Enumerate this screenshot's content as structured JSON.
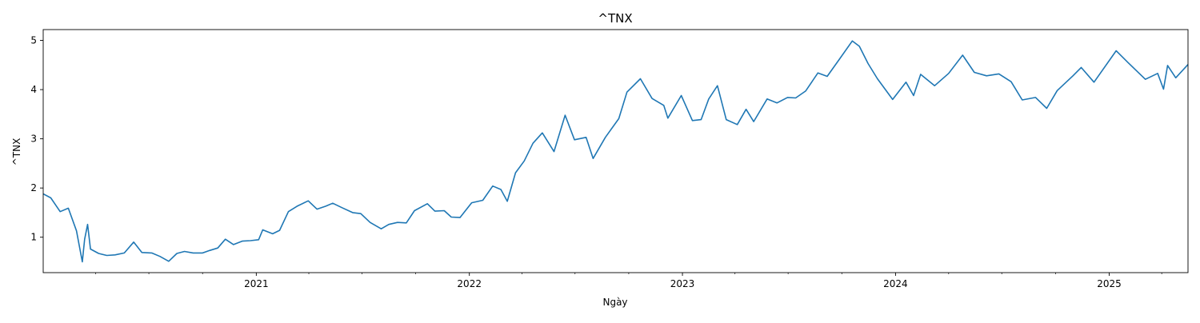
{
  "chart_data": {
    "type": "line",
    "title": "^TNX",
    "xlabel": "Ngày",
    "ylabel": "^TNX",
    "xlim": [
      "2020-01-02",
      "2025-05-16"
    ],
    "ylim": [
      0.28,
      5.22
    ],
    "yticks": [
      1,
      2,
      3,
      4,
      5
    ],
    "xticks": [
      {
        "date": "2021-01-01",
        "label": "2021"
      },
      {
        "date": "2022-01-01",
        "label": "2022"
      },
      {
        "date": "2023-01-01",
        "label": "2023"
      },
      {
        "date": "2024-01-01",
        "label": "2024"
      },
      {
        "date": "2025-01-01",
        "label": "2025"
      }
    ],
    "minor_xticks": [
      "2020-04-01",
      "2020-07-01",
      "2020-10-01",
      "2021-04-01",
      "2021-07-01",
      "2021-10-01",
      "2022-04-01",
      "2022-07-01",
      "2022-10-01",
      "2023-04-01",
      "2023-07-01",
      "2023-10-01",
      "2024-04-01",
      "2024-07-01",
      "2024-10-01",
      "2025-04-01"
    ],
    "grid": false,
    "legend": "none",
    "series": [
      {
        "color": "#1f77b4",
        "points": [
          [
            "2020-01-02",
            1.88
          ],
          [
            "2020-01-15",
            1.8
          ],
          [
            "2020-01-31",
            1.52
          ],
          [
            "2020-02-14",
            1.59
          ],
          [
            "2020-02-28",
            1.13
          ],
          [
            "2020-03-09",
            0.5
          ],
          [
            "2020-03-13",
            0.96
          ],
          [
            "2020-03-18",
            1.26
          ],
          [
            "2020-03-23",
            0.76
          ],
          [
            "2020-04-06",
            0.67
          ],
          [
            "2020-04-20",
            0.63
          ],
          [
            "2020-05-04",
            0.64
          ],
          [
            "2020-05-20",
            0.68
          ],
          [
            "2020-06-05",
            0.9
          ],
          [
            "2020-06-19",
            0.69
          ],
          [
            "2020-07-06",
            0.68
          ],
          [
            "2020-07-20",
            0.61
          ],
          [
            "2020-08-04",
            0.51
          ],
          [
            "2020-08-18",
            0.67
          ],
          [
            "2020-08-31",
            0.71
          ],
          [
            "2020-09-15",
            0.68
          ],
          [
            "2020-10-01",
            0.68
          ],
          [
            "2020-10-13",
            0.73
          ],
          [
            "2020-10-27",
            0.78
          ],
          [
            "2020-11-09",
            0.96
          ],
          [
            "2020-11-23",
            0.85
          ],
          [
            "2020-12-08",
            0.92
          ],
          [
            "2020-12-22",
            0.93
          ],
          [
            "2021-01-05",
            0.95
          ],
          [
            "2021-01-12",
            1.15
          ],
          [
            "2021-01-29",
            1.07
          ],
          [
            "2021-02-10",
            1.14
          ],
          [
            "2021-02-25",
            1.52
          ],
          [
            "2021-03-12",
            1.63
          ],
          [
            "2021-03-31",
            1.74
          ],
          [
            "2021-04-15",
            1.57
          ],
          [
            "2021-04-30",
            1.63
          ],
          [
            "2021-05-12",
            1.69
          ],
          [
            "2021-05-28",
            1.6
          ],
          [
            "2021-06-15",
            1.5
          ],
          [
            "2021-06-29",
            1.48
          ],
          [
            "2021-07-15",
            1.3
          ],
          [
            "2021-08-03",
            1.17
          ],
          [
            "2021-08-16",
            1.26
          ],
          [
            "2021-08-31",
            1.3
          ],
          [
            "2021-09-15",
            1.29
          ],
          [
            "2021-09-29",
            1.54
          ],
          [
            "2021-10-21",
            1.68
          ],
          [
            "2021-11-03",
            1.53
          ],
          [
            "2021-11-19",
            1.54
          ],
          [
            "2021-12-01",
            1.41
          ],
          [
            "2021-12-16",
            1.4
          ],
          [
            "2022-01-05",
            1.7
          ],
          [
            "2022-01-24",
            1.75
          ],
          [
            "2022-02-10",
            2.04
          ],
          [
            "2022-02-24",
            1.97
          ],
          [
            "2022-03-07",
            1.73
          ],
          [
            "2022-03-21",
            2.31
          ],
          [
            "2022-04-05",
            2.55
          ],
          [
            "2022-04-20",
            2.91
          ],
          [
            "2022-05-06",
            3.12
          ],
          [
            "2022-05-26",
            2.74
          ],
          [
            "2022-06-14",
            3.48
          ],
          [
            "2022-06-30",
            2.98
          ],
          [
            "2022-07-20",
            3.03
          ],
          [
            "2022-08-01",
            2.6
          ],
          [
            "2022-08-22",
            3.03
          ],
          [
            "2022-09-14",
            3.41
          ],
          [
            "2022-09-28",
            3.95
          ],
          [
            "2022-10-21",
            4.22
          ],
          [
            "2022-11-10",
            3.82
          ],
          [
            "2022-11-30",
            3.68
          ],
          [
            "2022-12-07",
            3.42
          ],
          [
            "2022-12-30",
            3.88
          ],
          [
            "2023-01-18",
            3.37
          ],
          [
            "2023-02-02",
            3.39
          ],
          [
            "2023-02-15",
            3.81
          ],
          [
            "2023-03-02",
            4.08
          ],
          [
            "2023-03-17",
            3.39
          ],
          [
            "2023-04-05",
            3.29
          ],
          [
            "2023-04-20",
            3.6
          ],
          [
            "2023-05-03",
            3.35
          ],
          [
            "2023-05-26",
            3.81
          ],
          [
            "2023-06-12",
            3.73
          ],
          [
            "2023-06-30",
            3.84
          ],
          [
            "2023-07-14",
            3.83
          ],
          [
            "2023-07-31",
            3.97
          ],
          [
            "2023-08-21",
            4.34
          ],
          [
            "2023-09-06",
            4.27
          ],
          [
            "2023-09-27",
            4.62
          ],
          [
            "2023-10-19",
            4.99
          ],
          [
            "2023-10-31",
            4.88
          ],
          [
            "2023-11-15",
            4.53
          ],
          [
            "2023-12-01",
            4.22
          ],
          [
            "2023-12-27",
            3.8
          ],
          [
            "2024-01-19",
            4.15
          ],
          [
            "2024-02-01",
            3.88
          ],
          [
            "2024-02-13",
            4.31
          ],
          [
            "2024-03-08",
            4.08
          ],
          [
            "2024-04-01",
            4.33
          ],
          [
            "2024-04-25",
            4.7
          ],
          [
            "2024-05-15",
            4.35
          ],
          [
            "2024-06-05",
            4.28
          ],
          [
            "2024-06-26",
            4.32
          ],
          [
            "2024-07-17",
            4.16
          ],
          [
            "2024-08-05",
            3.79
          ],
          [
            "2024-08-28",
            3.84
          ],
          [
            "2024-09-16",
            3.62
          ],
          [
            "2024-10-04",
            3.98
          ],
          [
            "2024-10-31",
            4.28
          ],
          [
            "2024-11-14",
            4.45
          ],
          [
            "2024-12-06",
            4.15
          ],
          [
            "2025-01-13",
            4.79
          ],
          [
            "2025-02-03",
            4.54
          ],
          [
            "2025-03-04",
            4.21
          ],
          [
            "2025-03-25",
            4.33
          ],
          [
            "2025-04-04",
            4.01
          ],
          [
            "2025-04-11",
            4.49
          ],
          [
            "2025-04-25",
            4.24
          ],
          [
            "2025-05-16",
            4.51
          ]
        ]
      }
    ]
  }
}
